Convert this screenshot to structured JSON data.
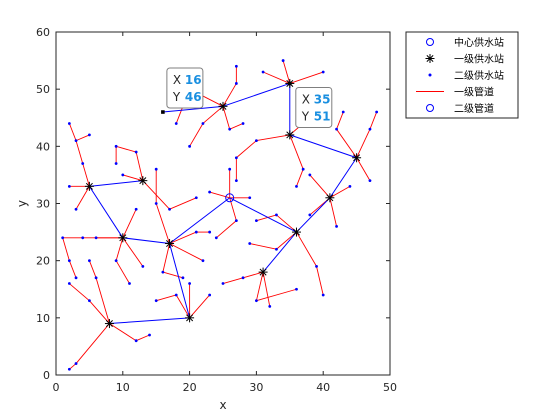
{
  "chart_data": {
    "type": "scatter",
    "title": "",
    "xlabel": "x",
    "ylabel": "y",
    "xlim": [
      0,
      50
    ],
    "ylim": [
      0,
      60
    ],
    "xticks": [
      0,
      10,
      20,
      30,
      40,
      50
    ],
    "yticks": [
      0,
      10,
      20,
      30,
      40,
      50,
      60
    ],
    "grid": false,
    "legend_position": "top-right-outside",
    "legend": [
      {
        "label": "中心供水站",
        "marker": "circle",
        "color": "#0000ff"
      },
      {
        "label": "一级供水站",
        "marker": "asterisk",
        "color": "#000000"
      },
      {
        "label": "二级供水站",
        "marker": "dot",
        "color": "#0000ff"
      },
      {
        "label": "一级管道",
        "marker": "line",
        "color": "#ff0000"
      },
      {
        "label": "二级管道",
        "marker": "circle",
        "color": "#0000ff"
      }
    ],
    "center_station": [
      26,
      31
    ],
    "primary_stations": [
      [
        5,
        33
      ],
      [
        13,
        34
      ],
      [
        10,
        24
      ],
      [
        17,
        23
      ],
      [
        20,
        10
      ],
      [
        8,
        9
      ],
      [
        25,
        47
      ],
      [
        35,
        42
      ],
      [
        35,
        51
      ],
      [
        45,
        38
      ],
      [
        41,
        31
      ],
      [
        36,
        25
      ],
      [
        31,
        18
      ]
    ],
    "blue_pipes": [
      [
        [
          26,
          31
        ],
        [
          17,
          23
        ]
      ],
      [
        [
          17,
          23
        ],
        [
          10,
          24
        ]
      ],
      [
        [
          10,
          24
        ],
        [
          5,
          33
        ]
      ],
      [
        [
          5,
          33
        ],
        [
          13,
          34
        ]
      ],
      [
        [
          17,
          23
        ],
        [
          20,
          10
        ]
      ],
      [
        [
          20,
          10
        ],
        [
          8,
          9
        ]
      ],
      [
        [
          26,
          31
        ],
        [
          36,
          25
        ]
      ],
      [
        [
          36,
          25
        ],
        [
          31,
          18
        ]
      ],
      [
        [
          36,
          25
        ],
        [
          41,
          31
        ]
      ],
      [
        [
          41,
          31
        ],
        [
          45,
          38
        ]
      ],
      [
        [
          45,
          38
        ],
        [
          35,
          42
        ]
      ],
      [
        [
          35,
          42
        ],
        [
          35,
          51
        ]
      ],
      [
        [
          35,
          51
        ],
        [
          25,
          47
        ]
      ],
      [
        [
          25,
          47
        ],
        [
          16,
          46
        ]
      ]
    ],
    "red_pipes": [
      [
        [
          5,
          33
        ],
        [
          2,
          33
        ]
      ],
      [
        [
          5,
          33
        ],
        [
          4,
          37
        ]
      ],
      [
        [
          5,
          33
        ],
        [
          3,
          29
        ]
      ],
      [
        [
          4,
          37
        ],
        [
          3,
          41
        ]
      ],
      [
        [
          3,
          41
        ],
        [
          2,
          44
        ]
      ],
      [
        [
          3,
          41
        ],
        [
          5,
          42
        ]
      ],
      [
        [
          13,
          34
        ],
        [
          10,
          35
        ]
      ],
      [
        [
          13,
          34
        ],
        [
          12,
          39
        ]
      ],
      [
        [
          13,
          34
        ],
        [
          17,
          29
        ]
      ],
      [
        [
          17,
          29
        ],
        [
          21,
          31
        ]
      ],
      [
        [
          12,
          39
        ],
        [
          9,
          40
        ]
      ],
      [
        [
          9,
          40
        ],
        [
          9,
          37
        ]
      ],
      [
        [
          10,
          24
        ],
        [
          6,
          24
        ]
      ],
      [
        [
          10,
          24
        ],
        [
          4,
          24
        ]
      ],
      [
        [
          4,
          24
        ],
        [
          1,
          24
        ]
      ],
      [
        [
          1,
          24
        ],
        [
          2,
          20
        ]
      ],
      [
        [
          2,
          20
        ],
        [
          3,
          17
        ]
      ],
      [
        [
          10,
          24
        ],
        [
          12,
          29
        ]
      ],
      [
        [
          10,
          24
        ],
        [
          9,
          20
        ]
      ],
      [
        [
          9,
          20
        ],
        [
          11,
          16
        ]
      ],
      [
        [
          10,
          24
        ],
        [
          13,
          19
        ]
      ],
      [
        [
          17,
          23
        ],
        [
          15,
          30
        ]
      ],
      [
        [
          15,
          30
        ],
        [
          15,
          36
        ]
      ],
      [
        [
          17,
          23
        ],
        [
          21,
          25
        ]
      ],
      [
        [
          21,
          25
        ],
        [
          23,
          25
        ]
      ],
      [
        [
          17,
          23
        ],
        [
          16,
          18
        ]
      ],
      [
        [
          16,
          18
        ],
        [
          19,
          17
        ]
      ],
      [
        [
          17,
          23
        ],
        [
          22,
          20
        ]
      ],
      [
        [
          20,
          10
        ],
        [
          18,
          14
        ]
      ],
      [
        [
          18,
          14
        ],
        [
          15,
          13
        ]
      ],
      [
        [
          20,
          10
        ],
        [
          20,
          16
        ]
      ],
      [
        [
          20,
          10
        ],
        [
          23,
          14
        ]
      ],
      [
        [
          8,
          9
        ],
        [
          5,
          13
        ]
      ],
      [
        [
          5,
          13
        ],
        [
          2,
          16
        ]
      ],
      [
        [
          8,
          9
        ],
        [
          3,
          2
        ]
      ],
      [
        [
          3,
          2
        ],
        [
          2,
          1
        ]
      ],
      [
        [
          8,
          9
        ],
        [
          12,
          6
        ]
      ],
      [
        [
          12,
          6
        ],
        [
          14,
          7
        ]
      ],
      [
        [
          8,
          9
        ],
        [
          6,
          17
        ]
      ],
      [
        [
          6,
          17
        ],
        [
          5,
          20
        ]
      ],
      [
        [
          25,
          47
        ],
        [
          22,
          44
        ]
      ],
      [
        [
          22,
          44
        ],
        [
          20,
          40
        ]
      ],
      [
        [
          25,
          47
        ],
        [
          26,
          43
        ]
      ],
      [
        [
          26,
          43
        ],
        [
          28,
          44
        ]
      ],
      [
        [
          25,
          47
        ],
        [
          27,
          51
        ]
      ],
      [
        [
          27,
          51
        ],
        [
          27,
          54
        ]
      ],
      [
        [
          25,
          47
        ],
        [
          20,
          50
        ]
      ],
      [
        [
          20,
          50
        ],
        [
          18,
          44
        ]
      ],
      [
        [
          35,
          42
        ],
        [
          30,
          41
        ]
      ],
      [
        [
          30,
          41
        ],
        [
          27,
          38
        ]
      ],
      [
        [
          27,
          38
        ],
        [
          27,
          34
        ]
      ],
      [
        [
          35,
          42
        ],
        [
          37,
          36
        ]
      ],
      [
        [
          37,
          36
        ],
        [
          36,
          33
        ]
      ],
      [
        [
          35,
          42
        ],
        [
          38,
          45
        ]
      ],
      [
        [
          35,
          51
        ],
        [
          40,
          53
        ]
      ],
      [
        [
          35,
          51
        ],
        [
          34,
          55
        ]
      ],
      [
        [
          35,
          51
        ],
        [
          31,
          53
        ]
      ],
      [
        [
          45,
          38
        ],
        [
          47,
          34
        ]
      ],
      [
        [
          45,
          38
        ],
        [
          42,
          43
        ]
      ],
      [
        [
          42,
          43
        ],
        [
          43,
          46
        ]
      ],
      [
        [
          45,
          38
        ],
        [
          47,
          43
        ]
      ],
      [
        [
          47,
          43
        ],
        [
          48,
          46
        ]
      ],
      [
        [
          41,
          31
        ],
        [
          42,
          26
        ]
      ],
      [
        [
          41,
          31
        ],
        [
          38,
          35
        ]
      ],
      [
        [
          41,
          31
        ],
        [
          44,
          33
        ]
      ],
      [
        [
          41,
          31
        ],
        [
          38,
          28
        ]
      ],
      [
        [
          36,
          25
        ],
        [
          33,
          28
        ]
      ],
      [
        [
          33,
          28
        ],
        [
          30,
          27
        ]
      ],
      [
        [
          36,
          25
        ],
        [
          39,
          19
        ]
      ],
      [
        [
          39,
          19
        ],
        [
          40,
          14
        ]
      ],
      [
        [
          36,
          25
        ],
        [
          33,
          22
        ]
      ],
      [
        [
          33,
          22
        ],
        [
          29,
          23
        ]
      ],
      [
        [
          31,
          18
        ],
        [
          28,
          17
        ]
      ],
      [
        [
          28,
          17
        ],
        [
          25,
          16
        ]
      ],
      [
        [
          31,
          18
        ],
        [
          30,
          13
        ]
      ],
      [
        [
          30,
          13
        ],
        [
          36,
          15
        ]
      ],
      [
        [
          31,
          18
        ],
        [
          32,
          12
        ]
      ],
      [
        [
          26,
          31
        ],
        [
          23,
          32
        ]
      ],
      [
        [
          26,
          31
        ],
        [
          27,
          27
        ]
      ],
      [
        [
          27,
          27
        ],
        [
          24,
          24
        ]
      ],
      [
        [
          26,
          31
        ],
        [
          29,
          31
        ]
      ],
      [
        [
          26,
          31
        ],
        [
          26,
          36
        ]
      ]
    ],
    "annotations": [
      {
        "x_label": "X",
        "x_value": "16",
        "y_label": "Y",
        "y_value": "46",
        "point": [
          16,
          46
        ]
      },
      {
        "x_label": "X",
        "x_value": "35",
        "y_label": "Y",
        "y_value": "51",
        "point": [
          35,
          51
        ]
      }
    ]
  }
}
